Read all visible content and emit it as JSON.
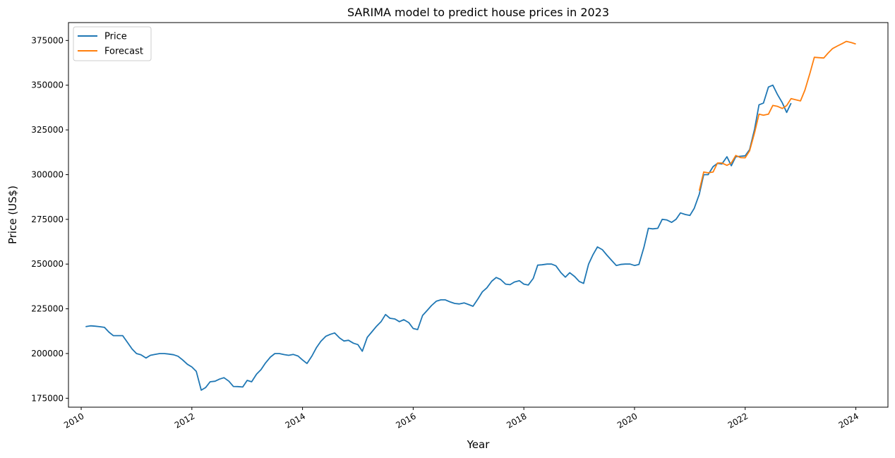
{
  "chart_data": {
    "type": "line",
    "title": "SARIMA model to predict house prices in 2023",
    "xlabel": "Year",
    "ylabel": "Price (US$)",
    "xlim": [
      2009.77,
      2024.58
    ],
    "ylim": [
      170000,
      385000
    ],
    "x_ticks": [
      2010,
      2012,
      2014,
      2016,
      2018,
      2020,
      2022,
      2024
    ],
    "y_ticks": [
      175000,
      200000,
      225000,
      250000,
      275000,
      300000,
      325000,
      350000,
      375000
    ],
    "grid": false,
    "legend_position": "top-left",
    "series": [
      {
        "name": "Price",
        "color": "#1f77b4",
        "points": [
          [
            2010.08,
            215000
          ],
          [
            2010.17,
            215500
          ],
          [
            2010.25,
            215300
          ],
          [
            2010.33,
            215000
          ],
          [
            2010.42,
            214600
          ],
          [
            2010.5,
            212000
          ],
          [
            2010.58,
            210000
          ],
          [
            2010.67,
            210000
          ],
          [
            2010.75,
            210000
          ],
          [
            2010.83,
            206500
          ],
          [
            2010.92,
            202500
          ],
          [
            2011.0,
            200000
          ],
          [
            2011.08,
            199300
          ],
          [
            2011.17,
            197500
          ],
          [
            2011.25,
            199000
          ],
          [
            2011.33,
            199500
          ],
          [
            2011.42,
            200000
          ],
          [
            2011.5,
            200000
          ],
          [
            2011.58,
            199700
          ],
          [
            2011.67,
            199300
          ],
          [
            2011.75,
            198500
          ],
          [
            2011.83,
            196500
          ],
          [
            2011.92,
            194000
          ],
          [
            2012.0,
            192500
          ],
          [
            2012.08,
            190000
          ],
          [
            2012.17,
            179500
          ],
          [
            2012.25,
            181000
          ],
          [
            2012.33,
            184200
          ],
          [
            2012.42,
            184500
          ],
          [
            2012.5,
            185700
          ],
          [
            2012.58,
            186500
          ],
          [
            2012.67,
            184500
          ],
          [
            2012.75,
            181600
          ],
          [
            2012.83,
            181500
          ],
          [
            2012.92,
            181300
          ],
          [
            2013.0,
            185000
          ],
          [
            2013.08,
            184200
          ],
          [
            2013.17,
            188500
          ],
          [
            2013.25,
            191000
          ],
          [
            2013.33,
            194700
          ],
          [
            2013.42,
            198000
          ],
          [
            2013.5,
            200000
          ],
          [
            2013.58,
            200000
          ],
          [
            2013.67,
            199400
          ],
          [
            2013.75,
            199000
          ],
          [
            2013.83,
            199500
          ],
          [
            2013.92,
            198600
          ],
          [
            2014.0,
            196400
          ],
          [
            2014.08,
            194400
          ],
          [
            2014.17,
            198600
          ],
          [
            2014.25,
            203200
          ],
          [
            2014.33,
            206800
          ],
          [
            2014.42,
            209600
          ],
          [
            2014.5,
            210700
          ],
          [
            2014.58,
            211500
          ],
          [
            2014.67,
            208700
          ],
          [
            2014.75,
            207000
          ],
          [
            2014.83,
            207400
          ],
          [
            2014.92,
            205800
          ],
          [
            2015.0,
            205000
          ],
          [
            2015.08,
            201300
          ],
          [
            2015.17,
            209000
          ],
          [
            2015.25,
            212000
          ],
          [
            2015.33,
            215000
          ],
          [
            2015.42,
            217800
          ],
          [
            2015.5,
            221800
          ],
          [
            2015.58,
            219700
          ],
          [
            2015.67,
            219300
          ],
          [
            2015.75,
            217800
          ],
          [
            2015.83,
            218900
          ],
          [
            2015.92,
            217300
          ],
          [
            2016.0,
            214000
          ],
          [
            2016.08,
            213400
          ],
          [
            2016.17,
            221300
          ],
          [
            2016.25,
            224000
          ],
          [
            2016.33,
            226800
          ],
          [
            2016.42,
            229300
          ],
          [
            2016.5,
            230000
          ],
          [
            2016.58,
            230000
          ],
          [
            2016.67,
            228800
          ],
          [
            2016.75,
            228000
          ],
          [
            2016.83,
            227700
          ],
          [
            2016.92,
            228300
          ],
          [
            2017.0,
            227400
          ],
          [
            2017.08,
            226400
          ],
          [
            2017.17,
            230500
          ],
          [
            2017.25,
            234500
          ],
          [
            2017.33,
            236700
          ],
          [
            2017.42,
            240400
          ],
          [
            2017.5,
            242500
          ],
          [
            2017.58,
            241400
          ],
          [
            2017.67,
            238800
          ],
          [
            2017.75,
            238500
          ],
          [
            2017.83,
            240000
          ],
          [
            2017.92,
            240700
          ],
          [
            2018.0,
            238800
          ],
          [
            2018.08,
            238300
          ],
          [
            2018.17,
            242000
          ],
          [
            2018.25,
            249400
          ],
          [
            2018.33,
            249600
          ],
          [
            2018.42,
            250000
          ],
          [
            2018.5,
            250000
          ],
          [
            2018.58,
            249000
          ],
          [
            2018.67,
            245200
          ],
          [
            2018.75,
            242700
          ],
          [
            2018.83,
            245200
          ],
          [
            2018.92,
            243000
          ],
          [
            2019.0,
            240300
          ],
          [
            2019.08,
            239200
          ],
          [
            2019.17,
            250000
          ],
          [
            2019.25,
            255300
          ],
          [
            2019.33,
            259600
          ],
          [
            2019.42,
            258000
          ],
          [
            2019.5,
            255000
          ],
          [
            2019.58,
            252300
          ],
          [
            2019.67,
            249200
          ],
          [
            2019.75,
            249800
          ],
          [
            2019.83,
            250000
          ],
          [
            2019.92,
            250000
          ],
          [
            2020.0,
            249200
          ],
          [
            2020.08,
            249800
          ],
          [
            2020.17,
            259400
          ],
          [
            2020.25,
            270000
          ],
          [
            2020.33,
            269700
          ],
          [
            2020.42,
            270000
          ],
          [
            2020.5,
            275000
          ],
          [
            2020.58,
            274700
          ],
          [
            2020.67,
            273300
          ],
          [
            2020.75,
            275000
          ],
          [
            2020.83,
            278600
          ],
          [
            2020.92,
            277700
          ],
          [
            2021.0,
            277200
          ],
          [
            2021.08,
            281200
          ],
          [
            2021.17,
            289000
          ],
          [
            2021.25,
            300000
          ],
          [
            2021.33,
            300000
          ],
          [
            2021.42,
            304500
          ],
          [
            2021.5,
            306300
          ],
          [
            2021.58,
            306000
          ],
          [
            2021.67,
            310000
          ],
          [
            2021.75,
            305000
          ],
          [
            2021.83,
            310000
          ],
          [
            2021.92,
            310300
          ],
          [
            2022.0,
            310500
          ],
          [
            2022.08,
            314000
          ],
          [
            2022.17,
            325500
          ],
          [
            2022.25,
            339000
          ],
          [
            2022.33,
            340000
          ],
          [
            2022.42,
            349000
          ],
          [
            2022.5,
            350000
          ],
          [
            2022.58,
            345000
          ],
          [
            2022.67,
            340200
          ],
          [
            2022.75,
            334800
          ],
          [
            2022.83,
            340000
          ]
        ]
      },
      {
        "name": "Forecast",
        "color": "#ff7f0e",
        "points": [
          [
            2021.17,
            291000
          ],
          [
            2021.25,
            301500
          ],
          [
            2021.33,
            301000
          ],
          [
            2021.42,
            301500
          ],
          [
            2021.5,
            306500
          ],
          [
            2021.58,
            306500
          ],
          [
            2021.67,
            305200
          ],
          [
            2021.75,
            306500
          ],
          [
            2021.83,
            310700
          ],
          [
            2021.92,
            309500
          ],
          [
            2022.0,
            309400
          ],
          [
            2022.08,
            313300
          ],
          [
            2022.17,
            323500
          ],
          [
            2022.25,
            333800
          ],
          [
            2022.33,
            333200
          ],
          [
            2022.42,
            333800
          ],
          [
            2022.5,
            338700
          ],
          [
            2022.58,
            338200
          ],
          [
            2022.67,
            337000
          ],
          [
            2022.75,
            338600
          ],
          [
            2022.83,
            342500
          ],
          [
            2022.92,
            341800
          ],
          [
            2023.0,
            341200
          ],
          [
            2023.08,
            347300
          ],
          [
            2023.17,
            356700
          ],
          [
            2023.25,
            365600
          ],
          [
            2023.33,
            365400
          ],
          [
            2023.42,
            365200
          ],
          [
            2023.5,
            368000
          ],
          [
            2023.58,
            370500
          ],
          [
            2023.67,
            372000
          ],
          [
            2023.75,
            373200
          ],
          [
            2023.83,
            374500
          ],
          [
            2023.92,
            373800
          ],
          [
            2024.0,
            373000
          ]
        ]
      }
    ]
  }
}
